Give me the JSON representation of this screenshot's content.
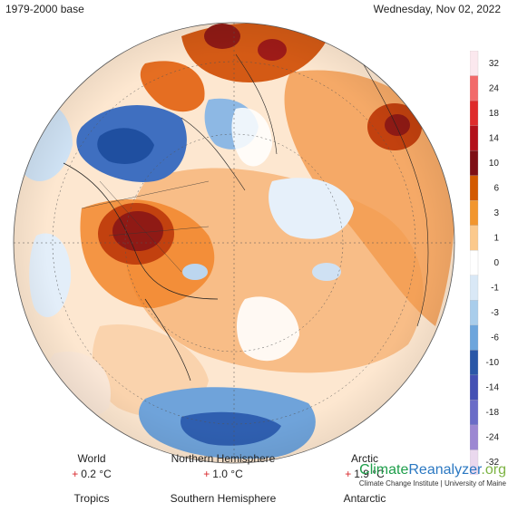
{
  "header": {
    "base_label": "1979-2000 base",
    "date_label": "Wednesday, Nov 02, 2022"
  },
  "legend": {
    "ticks": [
      "32",
      "24",
      "18",
      "14",
      "10",
      "6",
      "3",
      "1",
      "0",
      "-1",
      "-3",
      "-6",
      "-10",
      "-14",
      "-18",
      "-24",
      "-32"
    ],
    "colors": [
      "#fbe8ee",
      "#f26a6a",
      "#df2b2b",
      "#b3101a",
      "#7e0f15",
      "#d35a00",
      "#f2962e",
      "#fbc98c",
      "#ffffff",
      "#d9e8f6",
      "#a9cdeb",
      "#6da5dc",
      "#2a57a7",
      "#4451b4",
      "#6a6cc7",
      "#9c87d2",
      "#ead8ee"
    ]
  },
  "stats": {
    "world": {
      "label": "World",
      "sign": "+",
      "value": "0.2 °C"
    },
    "nh": {
      "label": "Northern Hemisphere",
      "sign": "+",
      "value": "1.0 °C"
    },
    "arctic": {
      "label": "Arctic",
      "sign": "+",
      "value": "1.9 °C"
    },
    "tropics": {
      "label": "Tropics"
    },
    "sh": {
      "label": "Southern Hemisphere"
    },
    "antarctic": {
      "label": "Antarctic"
    }
  },
  "brand": {
    "logo_part1": "Climate",
    "logo_part2": "Reanalyzer",
    "logo_part3": ".org",
    "subtitle": "Climate Change Institute | University of Maine"
  }
}
